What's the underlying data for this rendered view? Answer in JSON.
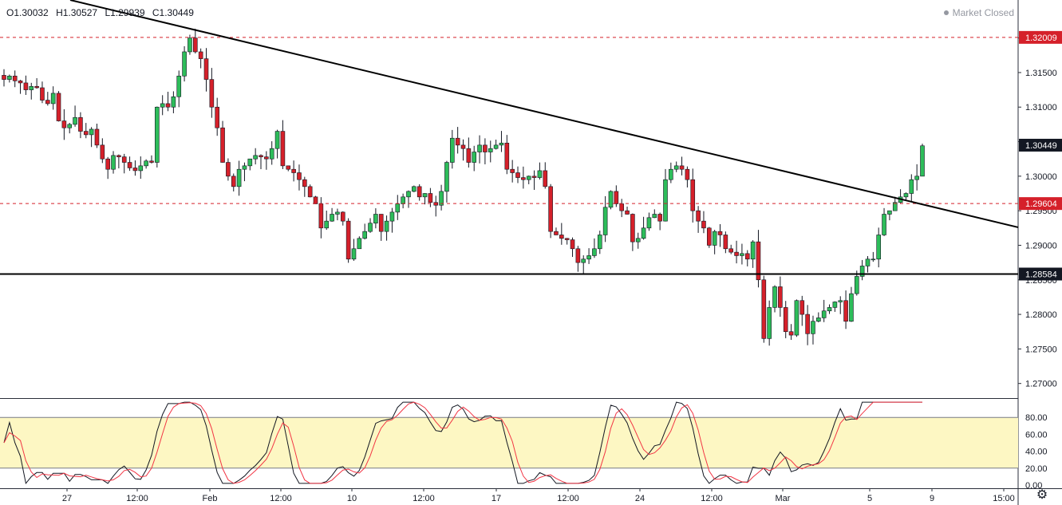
{
  "header": {
    "ohlc": {
      "open": "O1.30032",
      "high": "H1.30527",
      "low": "L1.29939",
      "close": "C1.30449"
    },
    "status": "Market Closed"
  },
  "colors": {
    "up": "#26a69a",
    "up_fill": "#2dbd5a",
    "down": "#d5202a",
    "wick": "#131722",
    "price_line": "#d5202a",
    "stoch_k": "#131722",
    "stoch_d": "#f23645",
    "band": "#fdf7c3"
  },
  "icons": {
    "settings": "gear-icon"
  },
  "chart_data": [
    {
      "type": "candlestick",
      "ylim": [
        1.268,
        1.3255
      ],
      "y_ticks": [
        "1.27000",
        "1.27500",
        "1.28000",
        "1.28500",
        "1.29000",
        "1.29500",
        "1.30000",
        "1.30500",
        "1.31000",
        "1.31500",
        "1.32000"
      ],
      "y_tick_values": [
        1.27,
        1.275,
        1.28,
        1.285,
        1.29,
        1.295,
        1.3,
        1.305,
        1.31,
        1.315,
        1.32
      ],
      "x_ticks": [
        "27",
        "12:00",
        "Feb",
        "12:00",
        "10",
        "12:00",
        "17",
        "12:00",
        "24",
        "12:00",
        "Mar",
        "5",
        "9",
        "15:00"
      ],
      "price_labels": [
        {
          "text": "1.32009",
          "value": 1.32009,
          "style": "red"
        },
        {
          "text": "1.30449",
          "value": 1.30449,
          "style": "dark"
        },
        {
          "text": "1.29604",
          "value": 1.29604,
          "style": "red"
        },
        {
          "text": "1.28584",
          "value": 1.28584,
          "style": "dark"
        }
      ],
      "horizontal_lines": [
        {
          "value": 1.32009,
          "style": "dashed-red"
        },
        {
          "value": 1.29604,
          "style": "dashed-red"
        },
        {
          "value": 1.28584,
          "style": "solid-black"
        }
      ],
      "trendline": {
        "from": [
          0,
          1.3255
        ],
        "to": [
          1.0,
          1.2926
        ]
      },
      "close": [
        1.314,
        1.3145,
        1.3138,
        1.3135,
        1.3125,
        1.313,
        1.3128,
        1.311,
        1.3105,
        1.312,
        1.308,
        1.307,
        1.3075,
        1.3085,
        1.3065,
        1.306,
        1.3068,
        1.3045,
        1.3025,
        1.301,
        1.303,
        1.3028,
        1.302,
        1.3012,
        1.3008,
        1.3015,
        1.3022,
        1.302,
        1.31,
        1.3105,
        1.31,
        1.3115,
        1.3145,
        1.318,
        1.32,
        1.318,
        1.317,
        1.314,
        1.31,
        1.307,
        1.302,
        1.3,
        1.2985,
        1.301,
        1.3015,
        1.3025,
        1.303,
        1.3028,
        1.3025,
        1.304,
        1.3065,
        1.3015,
        1.301,
        1.3005,
        1.2995,
        1.2985,
        1.297,
        1.296,
        1.2925,
        1.2935,
        1.2945,
        1.2948,
        1.2935,
        1.288,
        1.2895,
        1.291,
        1.292,
        1.2932,
        1.2945,
        1.292,
        1.2935,
        1.2948,
        1.296,
        1.297,
        1.2978,
        1.2985,
        1.297,
        1.2975,
        1.2962,
        1.2958,
        1.2978,
        1.302,
        1.3055,
        1.3045,
        1.304,
        1.302,
        1.3035,
        1.3045,
        1.3035,
        1.304,
        1.3045,
        1.3048,
        1.301,
        1.3005,
        1.2998,
        1.2995,
        1.3,
        1.2998,
        1.3008,
        1.2985,
        1.292,
        1.2915,
        1.291,
        1.2908,
        1.2895,
        1.2875,
        1.288,
        1.2885,
        1.2895,
        1.2915,
        1.2955,
        1.2978,
        1.296,
        1.295,
        1.2945,
        1.2905,
        1.291,
        1.2925,
        1.294,
        1.2945,
        1.2935,
        1.2995,
        1.301,
        1.3015,
        1.301,
        1.2995,
        1.295,
        1.2935,
        1.2925,
        1.29,
        1.292,
        1.2915,
        1.2895,
        1.289,
        1.2885,
        1.2888,
        1.288,
        1.2905,
        1.285,
        1.2765,
        1.281,
        1.284,
        1.281,
        1.2775,
        1.277,
        1.282,
        1.28,
        1.2772,
        1.279,
        1.2795,
        1.2805,
        1.281,
        1.2818,
        1.282,
        1.279,
        1.283,
        1.2855,
        1.287,
        1.288,
        1.288,
        1.2915,
        1.2945,
        1.295,
        1.2962,
        1.297,
        1.2975,
        1.2995,
        1.3,
        1.3044
      ],
      "stochastic": {
        "band": [
          20,
          80
        ],
        "y_ticks": [
          "0.00",
          "20.00",
          "40.00",
          "60.00",
          "80.00"
        ],
        "y_tick_values": [
          0,
          20,
          40,
          60,
          80
        ],
        "ylim": [
          0,
          100
        ]
      }
    }
  ]
}
